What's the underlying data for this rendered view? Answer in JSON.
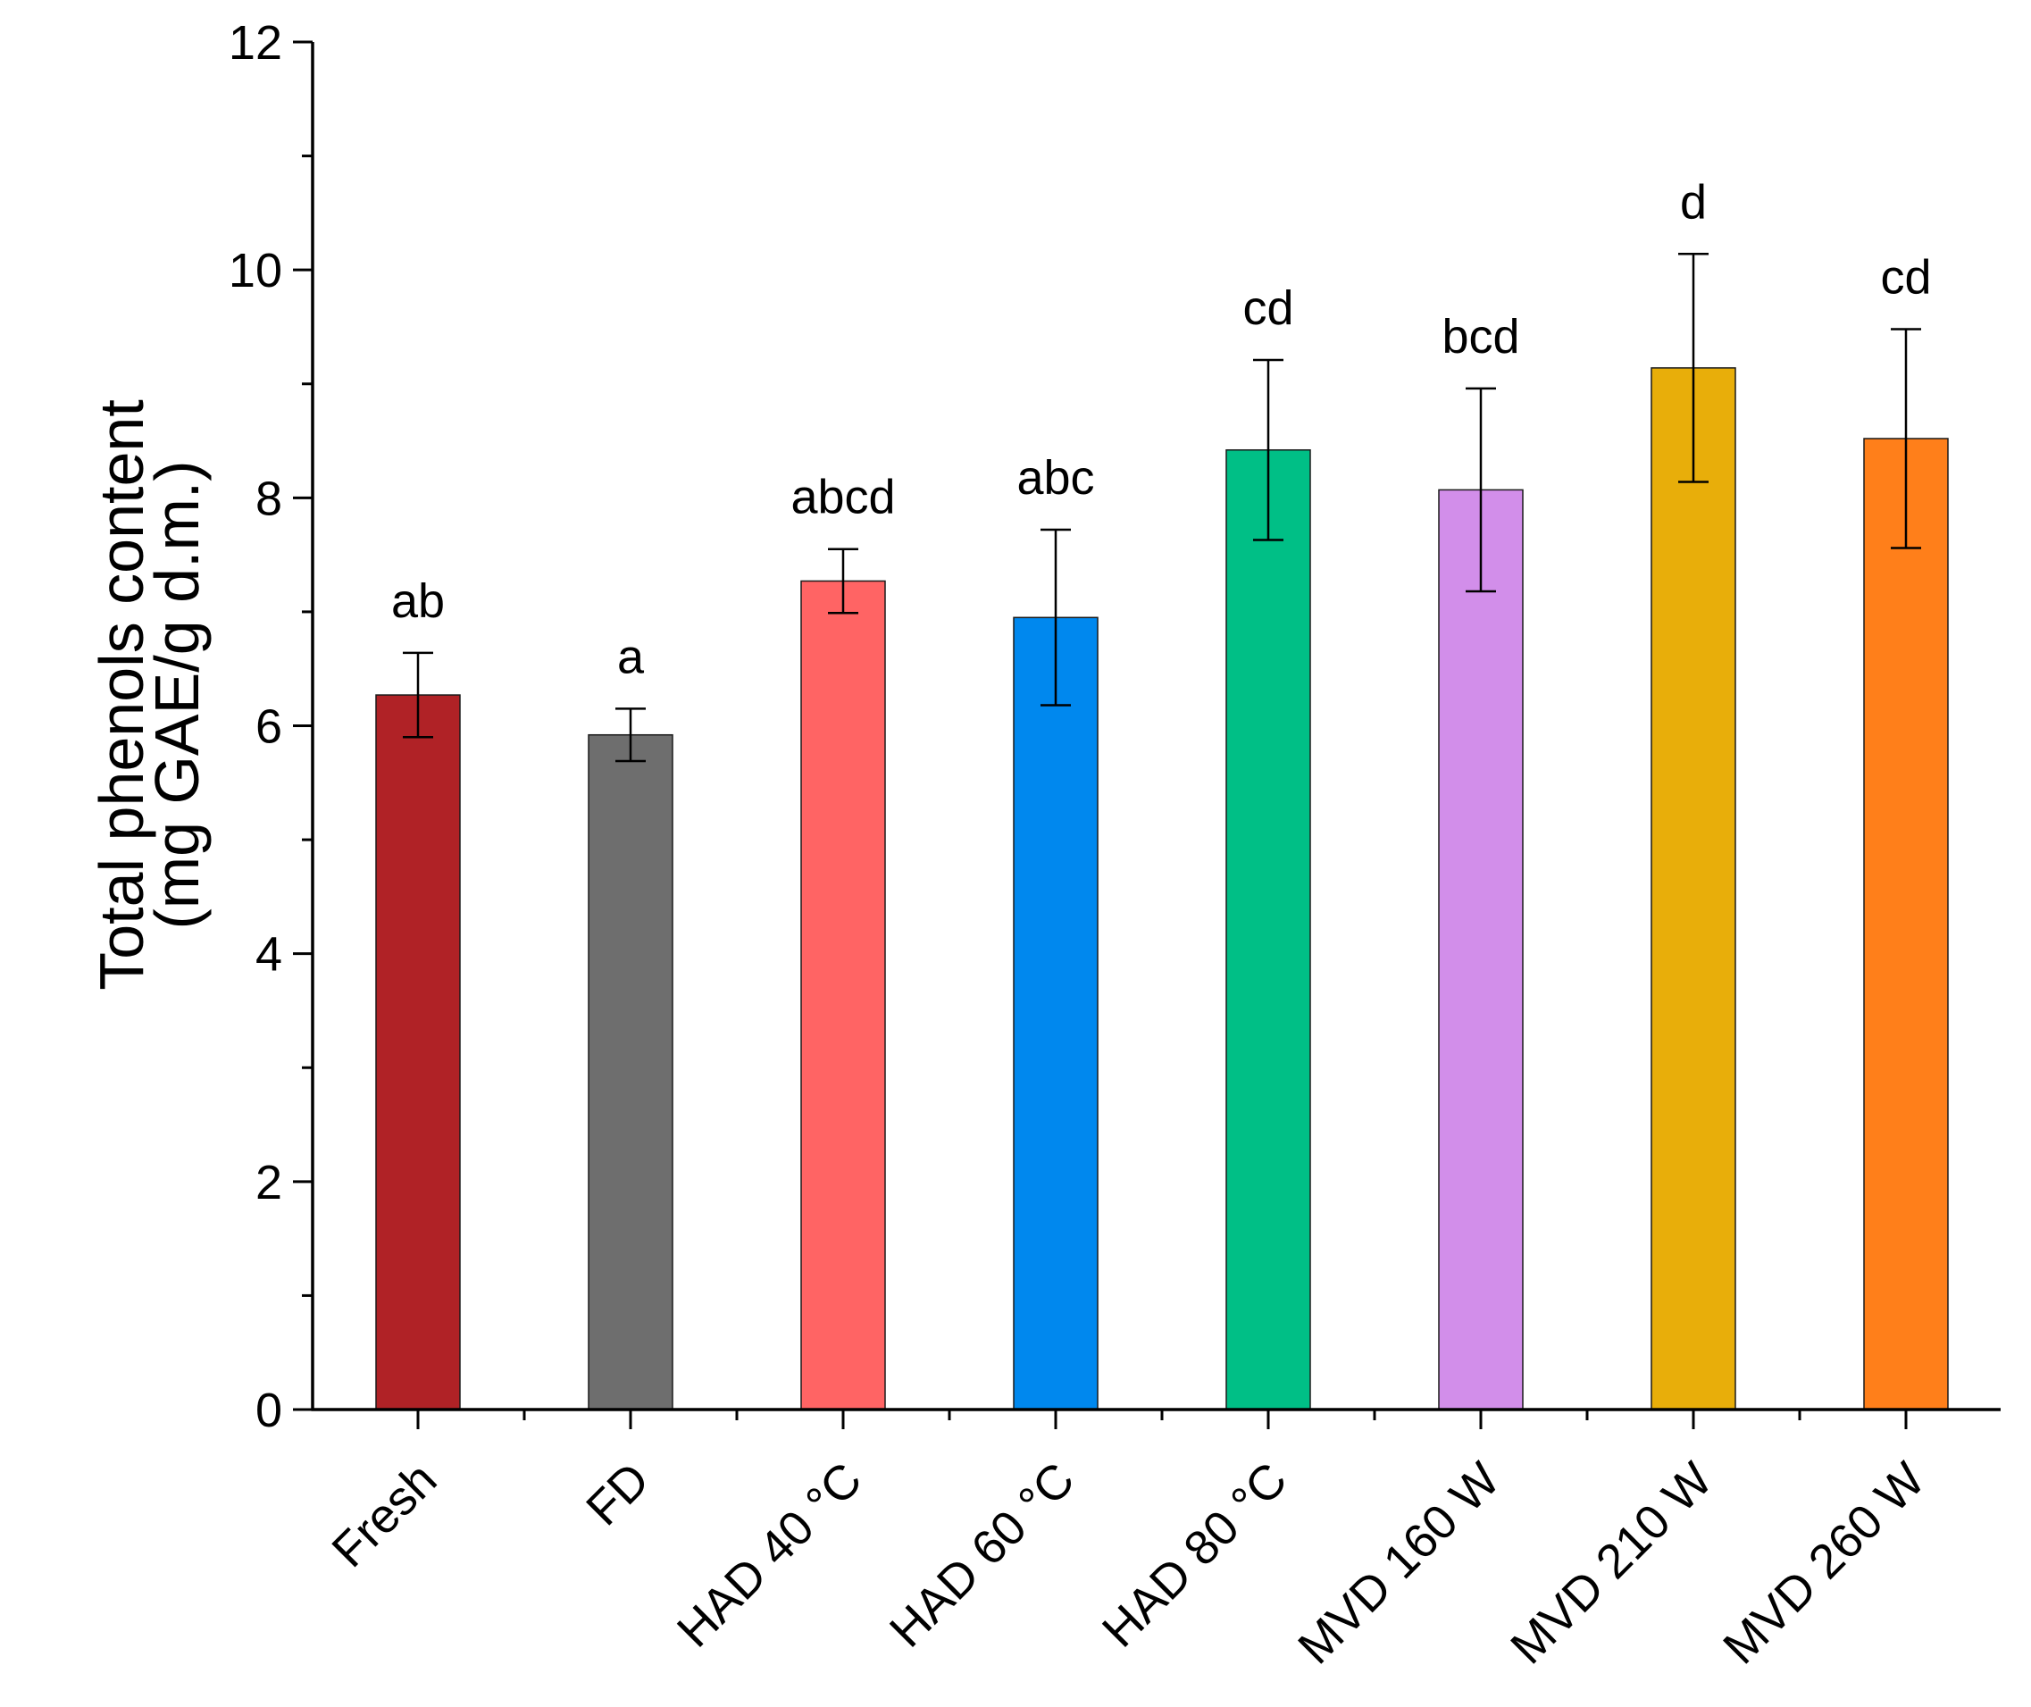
{
  "chart_data": {
    "type": "bar",
    "title": "",
    "xlabel": "",
    "ylabel_lines": [
      "Total phenols content",
      "(mg GAE/g d.m.)"
    ],
    "ylim": [
      0,
      12
    ],
    "yticks": [
      0,
      2,
      4,
      6,
      8,
      10,
      12
    ],
    "y_minor_step": 1,
    "grid": false,
    "legend": "none",
    "categories": [
      "Fresh",
      "FD",
      "HAD 40 °C",
      "HAD 60 °C",
      "HAD 80 °C",
      "MVD 160 W",
      "MVD 210 W",
      "MVD 260 W"
    ],
    "values": [
      6.27,
      5.92,
      7.27,
      6.95,
      8.42,
      8.07,
      9.14,
      8.52
    ],
    "errors": [
      0.37,
      0.23,
      0.28,
      0.77,
      0.79,
      0.89,
      1.0,
      0.96
    ],
    "significance": [
      "ab",
      "a",
      "abcd",
      "abc",
      "cd",
      "bcd",
      "d",
      "cd"
    ],
    "colors": [
      "#B02226",
      "#6E6E6E",
      "#FF6464",
      "#0088EE",
      "#00BF86",
      "#D28EEA",
      "#E8AE0A",
      "#FF7F1A"
    ]
  }
}
